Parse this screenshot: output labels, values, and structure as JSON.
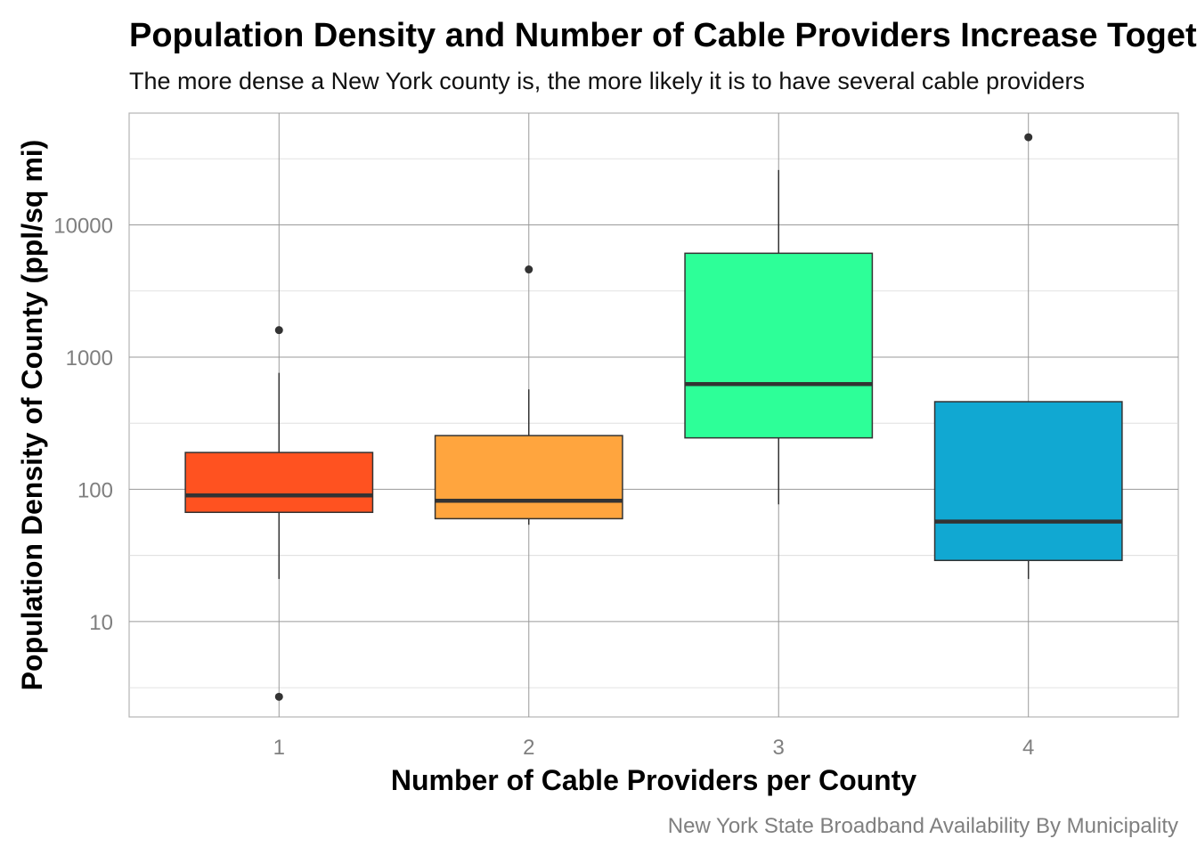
{
  "chart_data": {
    "type": "boxplot",
    "title": "Population Density and Number of Cable Providers Increase Together",
    "subtitle": "The more dense a New York county is, the more likely it is to have several cable providers",
    "xlabel": "Number of Cable Providers per County",
    "ylabel": "Population Density of County (ppl/sq mi)",
    "caption": "New York State Broadband Availability By Municipality",
    "y_scale": "log10",
    "ylim": [
      1.9,
      70000
    ],
    "y_ticks": [
      10,
      100,
      1000,
      10000
    ],
    "y_tick_labels": [
      "10",
      "100",
      "1000",
      "10000"
    ],
    "grid": true,
    "categories": [
      "1",
      "2",
      "3",
      "4"
    ],
    "boxes": [
      {
        "category": "1",
        "color": "#FF5220",
        "whisker_low": 21,
        "q1": 67,
        "median": 90,
        "q3": 190,
        "whisker_high": 760,
        "outliers": [
          1600,
          2.7
        ]
      },
      {
        "category": "2",
        "color": "#FFA53E",
        "whisker_low": 54,
        "q1": 60,
        "median": 82,
        "q3": 255,
        "whisker_high": 570,
        "outliers": [
          4600
        ]
      },
      {
        "category": "3",
        "color": "#2DFF98",
        "whisker_low": 77,
        "q1": 245,
        "median": 625,
        "q3": 6100,
        "whisker_high": 26000,
        "outliers": []
      },
      {
        "category": "4",
        "color": "#11A8D2",
        "whisker_low": 21,
        "q1": 29,
        "median": 57,
        "q3": 460,
        "whisker_high": 460,
        "outliers": [
          46000
        ]
      }
    ]
  }
}
